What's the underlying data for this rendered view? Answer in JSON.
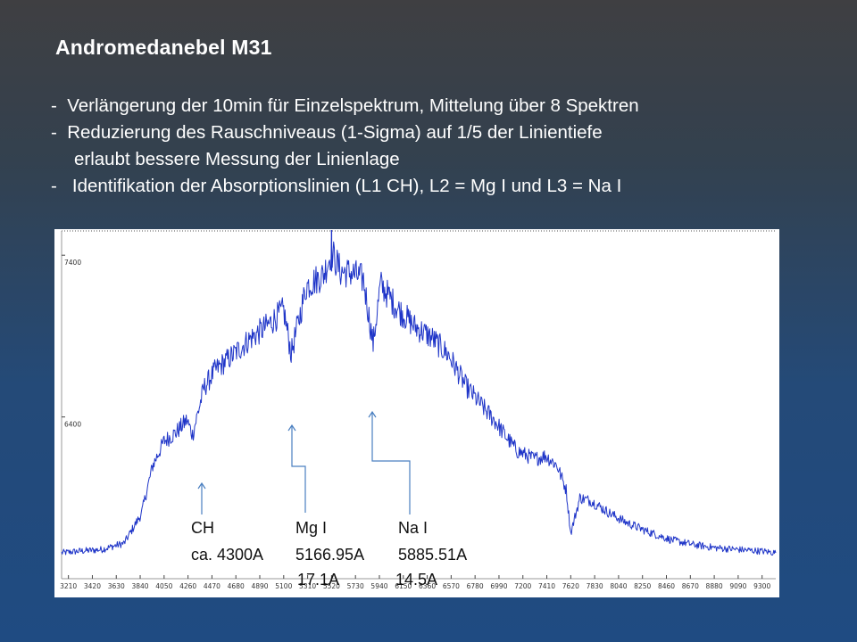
{
  "slide": {
    "title": "Andromedanebel  M31",
    "bullets": [
      "-  Verlängerung der 10min für Einzelspektrum, Mittelung über 8 Spektren",
      "-  Reduzierung des Rauschniveaus (1-Sigma) auf 1/5 der Linientiefe",
      "erlaubt bessere Messung der Linienlage",
      "-   Identifikation der Absorptionslinien (L1 CH), L2 = Mg I und L3 = Na I"
    ]
  },
  "chart_data": {
    "type": "line",
    "title": "",
    "xlabel": "",
    "ylabel": "",
    "x_ticks": [
      3210,
      3420,
      3630,
      3840,
      4050,
      4260,
      4470,
      4680,
      4890,
      5100,
      5310,
      5520,
      5730,
      5940,
      6150,
      6360,
      6570,
      6780,
      6990,
      7200,
      7410,
      7620,
      7830,
      8040,
      8250,
      8460,
      8670,
      8880,
      9090,
      9300
    ],
    "y_ticks": [
      7400,
      6400
    ],
    "xlim": [
      3150,
      9420
    ],
    "ylim": [
      5400,
      7550
    ],
    "grid": false,
    "series": [
      {
        "values_xy": [
          [
            3150,
            5560
          ],
          [
            3300,
            5570
          ],
          [
            3500,
            5580
          ],
          [
            3700,
            5620
          ],
          [
            3850,
            5800
          ],
          [
            3950,
            6100
          ],
          [
            4050,
            6250
          ],
          [
            4150,
            6300
          ],
          [
            4250,
            6380
          ],
          [
            4300,
            6290
          ],
          [
            4400,
            6580
          ],
          [
            4500,
            6690
          ],
          [
            4650,
            6780
          ],
          [
            4800,
            6880
          ],
          [
            4950,
            6960
          ],
          [
            5100,
            7060
          ],
          [
            5166,
            6790
          ],
          [
            5300,
            7210
          ],
          [
            5450,
            7280
          ],
          [
            5520,
            7420
          ],
          [
            5600,
            7300
          ],
          [
            5700,
            7290
          ],
          [
            5800,
            7250
          ],
          [
            5885,
            6850
          ],
          [
            5950,
            7220
          ],
          [
            6100,
            7070
          ],
          [
            6250,
            6960
          ],
          [
            6400,
            6890
          ],
          [
            6550,
            6780
          ],
          [
            6700,
            6590
          ],
          [
            6850,
            6460
          ],
          [
            6950,
            6380
          ],
          [
            7050,
            6280
          ],
          [
            7150,
            6190
          ],
          [
            7300,
            6140
          ],
          [
            7400,
            6160
          ],
          [
            7500,
            6100
          ],
          [
            7580,
            5950
          ],
          [
            7620,
            5680
          ],
          [
            7700,
            5900
          ],
          [
            7800,
            5880
          ],
          [
            7950,
            5810
          ],
          [
            8100,
            5750
          ],
          [
            8300,
            5690
          ],
          [
            8500,
            5640
          ],
          [
            8700,
            5610
          ],
          [
            8900,
            5590
          ],
          [
            9100,
            5580
          ],
          [
            9300,
            5570
          ],
          [
            9420,
            5560
          ]
        ]
      }
    ],
    "annotations": [
      {
        "line": "CH",
        "wavelength_label": "ca. 4300A",
        "depth_label": "",
        "x": 4300
      },
      {
        "line": "Mg I",
        "wavelength_label": "5166.95A",
        "depth_label": "17.1A",
        "x": 5167
      },
      {
        "line": "Na I",
        "wavelength_label": "5885.51A",
        "depth_label": "14.5A",
        "x": 5886
      }
    ],
    "line_color": "#1f35c8",
    "arrow_color": "#4a7fc0"
  }
}
